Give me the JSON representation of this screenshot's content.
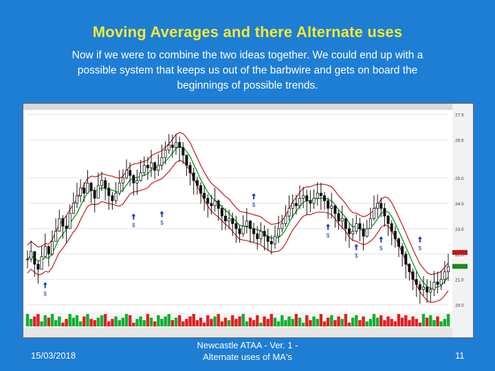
{
  "slide": {
    "title": "Moving Averages and there Alternate uses",
    "body": "Now if we were to combine the two ideas together. We could end up with a possible system that keeps us out of the barbwire and gets on board the beginnings of possible trends.",
    "footer_date": "15/03/2018",
    "footer_center_line1": "Newcastle ATAA - Ver. 1 -",
    "footer_center_line2": "Alternate uses of MA's",
    "page_number": "11"
  },
  "colors": {
    "background": "#1e7ed4",
    "title": "#f3ea36",
    "ma_fast": "#10a020",
    "ma_upper": "#c01818",
    "ma_lower": "#c01818",
    "signal": "#1a3fb8",
    "up_bar": "#10b030",
    "down_bar": "#e02020",
    "price_tag_green": "#1a8a1a",
    "price_tag_red": "#c01818"
  },
  "chart_data": {
    "type": "line",
    "x": [
      1,
      2,
      3,
      4,
      5,
      6,
      7,
      8,
      9,
      10,
      11,
      12,
      13,
      14,
      15,
      16,
      17,
      18,
      19,
      20,
      21,
      22,
      23,
      24,
      25,
      26,
      27,
      28,
      29,
      30,
      31,
      32,
      33,
      34,
      35,
      36,
      37,
      38,
      39,
      40,
      41,
      42,
      43,
      44,
      45,
      46,
      47,
      48,
      49,
      50,
      51,
      52,
      53,
      54,
      55,
      56,
      57,
      58,
      59,
      60,
      61,
      62,
      63,
      64,
      65,
      66,
      67,
      68,
      69,
      70,
      71,
      72,
      73,
      74,
      75,
      76,
      77,
      78,
      79,
      80,
      81,
      82,
      83,
      84,
      85,
      86,
      87,
      88,
      89,
      90,
      91,
      92,
      93,
      94,
      95,
      96,
      97,
      98,
      99,
      100,
      101,
      102,
      103,
      104,
      105,
      106,
      107,
      108,
      109,
      110,
      111,
      112,
      113,
      114,
      115,
      116,
      117,
      118,
      119,
      120
    ],
    "series": [
      {
        "values": [
          21.8,
          22.1,
          21.6,
          21.4,
          21.9,
          22.3,
          22.0,
          22.5,
          22.9,
          23.4,
          23.1,
          23.0,
          23.6,
          24.0,
          24.3,
          24.6,
          24.4,
          24.8,
          24.5,
          24.2,
          24.7,
          24.9,
          24.6,
          24.3,
          24.1,
          24.4,
          24.8,
          25.0,
          25.3,
          25.1,
          24.8,
          24.9,
          25.2,
          25.5,
          25.4,
          25.6,
          25.3,
          25.5,
          25.8,
          26.1,
          26.3,
          26.2,
          26.4,
          26.2,
          25.9,
          25.5,
          25.2,
          24.9,
          24.7,
          24.4,
          24.2,
          24.0,
          23.9,
          24.1,
          23.8,
          23.5,
          23.3,
          23.4,
          23.2,
          23.0,
          22.8,
          23.1,
          23.3,
          23.0,
          22.8,
          22.6,
          22.9,
          22.7,
          22.5,
          22.4,
          22.7,
          23.0,
          23.2,
          23.5,
          23.8,
          24.0,
          23.9,
          24.2,
          24.3,
          24.1,
          24.0,
          24.2,
          24.4,
          24.3,
          24.1,
          23.8,
          23.9,
          23.6,
          23.3,
          23.4,
          23.0,
          22.8,
          22.9,
          23.2,
          23.0,
          22.7,
          23.0,
          23.4,
          23.8,
          24.0,
          23.8,
          23.5,
          23.2,
          22.9,
          22.6,
          22.3,
          22.0,
          21.6,
          21.3,
          21.0,
          20.8,
          20.6,
          20.7,
          20.5,
          20.6,
          20.9,
          20.8,
          21.0,
          21.3,
          21.5
        ]
      }
    ],
    "bands": {
      "upper_offset": 0.55,
      "lower_offset": 0.55
    },
    "ylim": [
      19.8,
      27.6
    ],
    "y_ticks": [
      27.5,
      26.5,
      25.0,
      24.0,
      23.0,
      22.0,
      21.0,
      20.0
    ],
    "signals": [
      {
        "x": 6,
        "y": 20.9,
        "tag": "$"
      },
      {
        "x": 31,
        "y": 23.6,
        "tag": "$"
      },
      {
        "x": 39,
        "y": 23.7,
        "tag": "$"
      },
      {
        "x": 65,
        "y": 24.4,
        "tag": "$"
      },
      {
        "x": 86,
        "y": 23.2,
        "tag": "$"
      },
      {
        "x": 94,
        "y": 22.4,
        "tag": "$"
      },
      {
        "x": 101,
        "y": 22.7,
        "tag": "$"
      },
      {
        "x": 112,
        "y": 22.7,
        "tag": "$"
      }
    ],
    "volume": [
      1,
      0.6,
      0.8,
      1,
      0.4,
      0.9,
      0.7,
      1,
      0.5,
      0.8,
      0.3,
      0.6,
      1,
      0.7,
      0.9,
      0.4,
      0.8,
      1,
      0.6,
      0.5,
      0.7,
      0.9,
      1,
      0.4,
      0.6,
      0.8,
      0.5,
      0.7,
      1,
      0.9,
      0.3,
      0.6,
      0.8,
      0.5,
      1,
      0.7,
      0.4,
      0.9,
      0.6,
      0.8,
      1,
      0.5,
      0.7,
      0.9,
      0.4,
      0.6,
      0.8,
      1,
      0.5,
      0.7,
      0.3,
      0.9,
      0.6,
      0.8,
      1,
      0.4,
      0.7,
      0.5,
      0.9,
      0.6,
      0.8,
      1,
      0.4,
      0.7,
      0.5,
      0.9,
      0.3,
      0.8,
      0.6,
      1,
      0.7,
      0.4,
      0.9,
      0.5,
      0.8,
      0.6,
      1,
      0.7,
      0.3,
      0.9,
      0.5,
      0.8,
      0.6,
      1,
      0.4,
      0.7,
      0.9,
      0.5,
      0.8,
      0.6,
      1,
      0.3,
      0.7,
      0.9,
      0.5,
      0.8,
      0.4,
      0.6,
      1,
      0.7,
      0.9,
      0.5,
      0.8,
      0.6,
      0.4,
      1,
      0.7,
      0.9,
      0.5,
      0.8,
      0.6,
      0.3,
      1,
      0.7,
      0.9,
      0.5,
      0.8,
      0.4,
      0.6,
      1
    ]
  }
}
